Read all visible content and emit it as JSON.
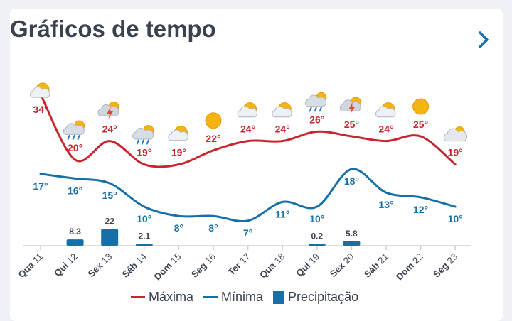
{
  "widget": {
    "title": "Gráficos de tempo",
    "next_icon": "chevron-right-icon"
  },
  "colors": {
    "max": "#c8262e",
    "min": "#1670a6",
    "precip": "#1670a6",
    "axis": "#c9d0d8",
    "text": "#3a4250"
  },
  "legend": {
    "max": "Máxima",
    "min": "Mínima",
    "precip": "Precipitação"
  },
  "chart_data": {
    "type": "line",
    "categories": [
      "Qua 11",
      "Qui 12",
      "Sex 13",
      "Sáb 14",
      "Dom 15",
      "Seg 16",
      "Ter 17",
      "Qua 18",
      "Qui 19",
      "Sex 20",
      "Sáb 21",
      "Dom 22",
      "Seg 23"
    ],
    "icons": [
      "sun-cloud",
      "rain-cloud",
      "thunder-cloud",
      "rain-cloud",
      "sun-cloud",
      "sun",
      "sun-cloud",
      "sun-cloud",
      "rain-cloud",
      "thunder-cloud",
      "sun-cloud",
      "sun",
      "cloud"
    ],
    "series": [
      {
        "name": "Máxima",
        "values": [
          34,
          20,
          24,
          19,
          19,
          22,
          24,
          24,
          26,
          25,
          24,
          25,
          19
        ],
        "labels": [
          "34°",
          "20°",
          "24°",
          "19°",
          "19°",
          "22°",
          "24°",
          "24°",
          "26°",
          "25°",
          "24°",
          "25°",
          "19°"
        ]
      },
      {
        "name": "Mínima",
        "values": [
          17,
          16,
          15,
          10,
          8,
          8,
          7,
          11,
          10,
          18,
          13,
          12,
          10
        ],
        "labels": [
          "17°",
          "16°",
          "15°",
          "10°",
          "8°",
          "8°",
          "7°",
          "11°",
          "10°",
          "18°",
          "13°",
          "12°",
          "10°"
        ]
      },
      {
        "name": "Precipitação",
        "values": [
          0,
          8.3,
          22,
          2.1,
          0,
          0,
          0,
          0,
          0.2,
          5.8,
          0,
          0,
          0
        ],
        "labels": [
          "",
          "8.3",
          "22",
          "2.1",
          "",
          "",
          "",
          "",
          "0.2",
          "5.8",
          "",
          "",
          ""
        ]
      }
    ],
    "grid": false,
    "legend_position": "bottom-center"
  }
}
